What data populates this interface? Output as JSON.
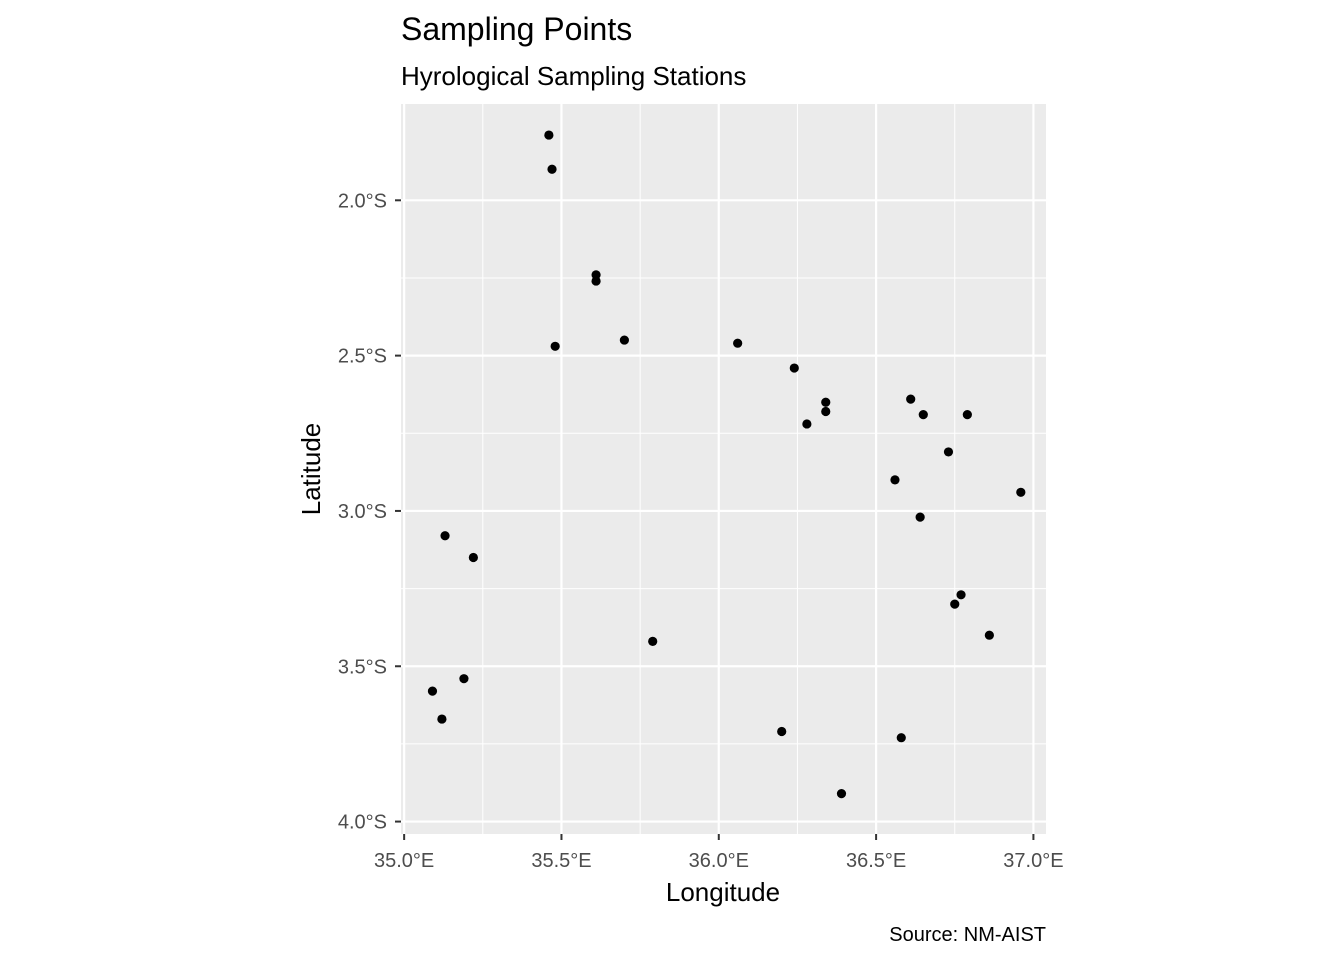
{
  "chart_data": {
    "type": "scatter",
    "title": "Sampling Points",
    "subtitle": "Hyrological Sampling Stations",
    "xlabel": "Longitude",
    "ylabel": "Latitude",
    "caption": "Source: NM-AIST",
    "xlim": [
      34.99,
      37.04
    ],
    "ylim": [
      -4.04,
      -1.69
    ],
    "x_ticks": [
      35.0,
      35.5,
      36.0,
      36.5,
      37.0
    ],
    "x_tick_labels": [
      "35.0°E",
      "35.5°E",
      "36.0°E",
      "36.5°E",
      "37.0°E"
    ],
    "y_ticks": [
      -2.0,
      -2.5,
      -3.0,
      -3.5,
      -4.0
    ],
    "y_tick_labels": [
      "2.0°S",
      "2.5°S",
      "3.0°S",
      "3.5°S",
      "4.0°S"
    ],
    "grid": true,
    "panel_color": "#ebebeb",
    "grid_color": "#ffffff",
    "point_color": "#000000",
    "points": [
      {
        "x": 35.46,
        "y": -1.79
      },
      {
        "x": 35.47,
        "y": -1.9
      },
      {
        "x": 35.61,
        "y": -2.24
      },
      {
        "x": 35.61,
        "y": -2.26
      },
      {
        "x": 35.48,
        "y": -2.47
      },
      {
        "x": 35.7,
        "y": -2.45
      },
      {
        "x": 36.06,
        "y": -2.46
      },
      {
        "x": 36.24,
        "y": -2.54
      },
      {
        "x": 36.34,
        "y": -2.65
      },
      {
        "x": 36.34,
        "y": -2.68
      },
      {
        "x": 36.28,
        "y": -2.72
      },
      {
        "x": 36.61,
        "y": -2.64
      },
      {
        "x": 36.65,
        "y": -2.69
      },
      {
        "x": 36.79,
        "y": -2.69
      },
      {
        "x": 36.73,
        "y": -2.81
      },
      {
        "x": 36.56,
        "y": -2.9
      },
      {
        "x": 36.96,
        "y": -2.94
      },
      {
        "x": 36.64,
        "y": -3.02
      },
      {
        "x": 35.13,
        "y": -3.08
      },
      {
        "x": 35.22,
        "y": -3.15
      },
      {
        "x": 36.77,
        "y": -3.27
      },
      {
        "x": 36.75,
        "y": -3.3
      },
      {
        "x": 36.86,
        "y": -3.4
      },
      {
        "x": 35.79,
        "y": -3.42
      },
      {
        "x": 35.19,
        "y": -3.54
      },
      {
        "x": 35.09,
        "y": -3.58
      },
      {
        "x": 35.12,
        "y": -3.67
      },
      {
        "x": 36.2,
        "y": -3.71
      },
      {
        "x": 36.58,
        "y": -3.73
      },
      {
        "x": 36.39,
        "y": -3.91
      }
    ]
  }
}
